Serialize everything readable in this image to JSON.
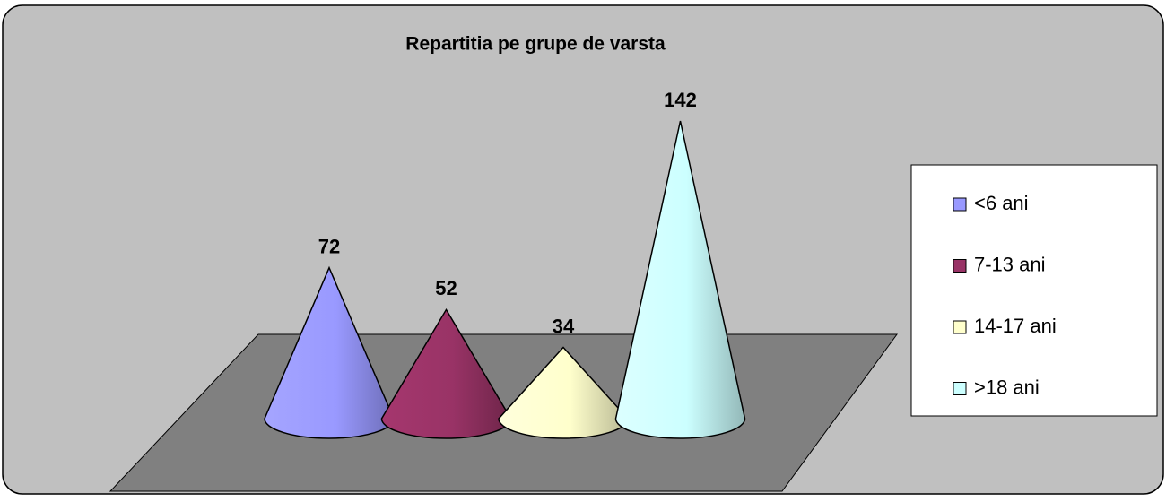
{
  "chart_data": {
    "type": "cone",
    "title": "Repartitia pe grupe de varsta",
    "categories": [
      "<6 ani",
      "7-13 ani",
      "14-17 ani",
      ">18 ani"
    ],
    "values": [
      72,
      52,
      34,
      142
    ],
    "colors": [
      "#9999ff",
      "#993366",
      "#ffffcc",
      "#ccffff"
    ],
    "legend": "right"
  }
}
